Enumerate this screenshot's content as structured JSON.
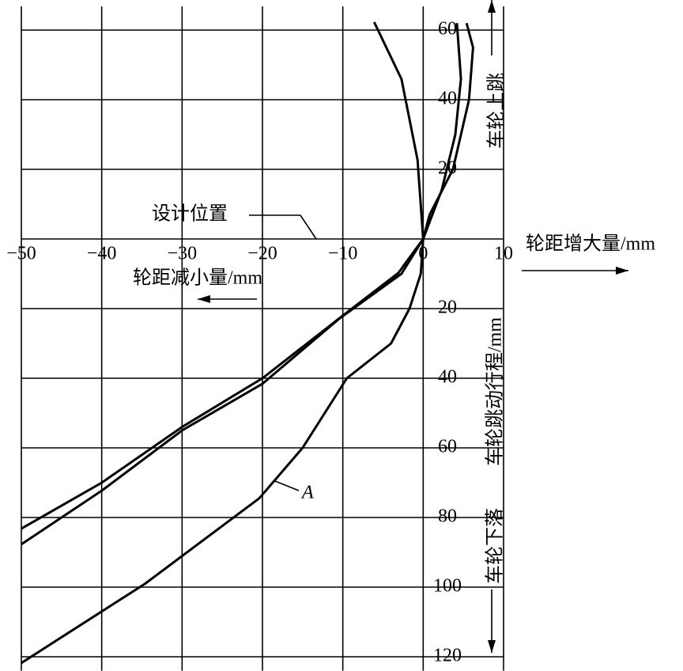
{
  "chart_data": {
    "type": "line",
    "x_axis_label_positive": "轮距增大量/mm",
    "x_axis_label_negative": "轮距减小量/mm",
    "y_axis_label": "车轮跳动行程/mm",
    "y_label_up": "车轮上跳",
    "y_label_down": "车轮下落",
    "annotation": "设计位置",
    "xlim": [
      -50,
      10
    ],
    "ylim": [
      -124,
      68.6
    ],
    "xticks": [
      {
        "value": -50,
        "label": "−50"
      },
      {
        "value": -40,
        "label": "−40"
      },
      {
        "value": -30,
        "label": "−30"
      },
      {
        "value": -20,
        "label": "−20"
      },
      {
        "value": -10,
        "label": "−10"
      },
      0,
      10
    ],
    "yticks": [
      60,
      40,
      20,
      {
        "value": -20,
        "label": "20"
      },
      {
        "value": -40,
        "label": "40"
      },
      {
        "value": -60,
        "label": "60"
      },
      {
        "value": -80,
        "label": "80"
      },
      {
        "value": -100,
        "label": "100"
      },
      {
        "value": -120,
        "label": "120"
      }
    ],
    "grid": true,
    "color": "#000000",
    "series": [
      {
        "name": "A",
        "x": [
          -6.1,
          -2.7,
          -0.7,
          0,
          -0.3,
          -1.7,
          -4,
          -9.5,
          -15,
          -20.4,
          -34.6,
          -50
        ],
        "y": [
          62.3,
          45.9,
          22.7,
          0,
          -10,
          -20,
          -30,
          -40,
          -60,
          -74.5,
          -99,
          -121.8
        ]
      },
      {
        "x": [
          4.2,
          4.7,
          4,
          2.3,
          0,
          -3.1,
          -10,
          -20,
          -30,
          -40,
          -50
        ],
        "y": [
          62,
          46,
          30,
          14,
          0,
          -9.8,
          -22,
          -40,
          -54,
          -70,
          -83.2
        ]
      },
      {
        "x": [
          5.4,
          6.2,
          5.7,
          3.7,
          0.8,
          0,
          -2.7,
          -10.5,
          -20,
          -30,
          -40,
          -50
        ],
        "y": [
          62,
          55,
          40,
          20,
          7,
          0,
          -10,
          -23,
          -41.6,
          -55,
          -72.3,
          -87.7
        ]
      }
    ]
  }
}
